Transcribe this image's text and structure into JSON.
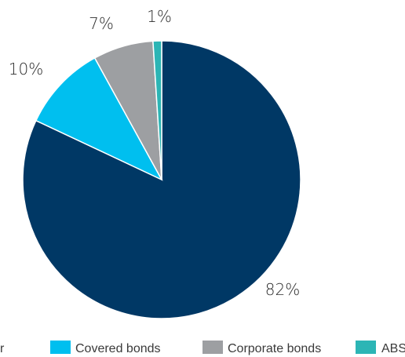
{
  "chart_data": {
    "type": "pie",
    "categories": [
      "",
      "Covered bonds",
      "Corporate bonds",
      "ABS"
    ],
    "values": [
      82,
      10,
      7,
      1
    ],
    "labels": [
      "82%",
      "10%",
      "7%",
      "1%"
    ],
    "colors": [
      "#003865",
      "#00bfef",
      "#9d9fa2",
      "#2cb5b5"
    ],
    "legend": [
      "r",
      "Covered bonds",
      "Corporate bonds",
      "ABS"
    ],
    "legend_position": "bottom"
  }
}
